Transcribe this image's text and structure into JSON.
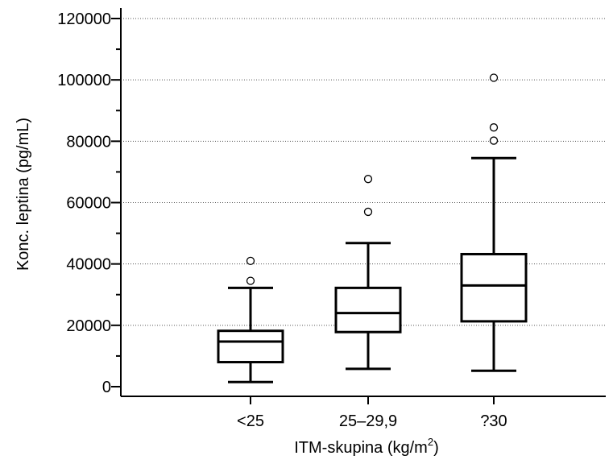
{
  "chart_data": {
    "type": "boxplot",
    "xlabel_main": "ITM-skupina (kg/m",
    "xlabel_sup": "2",
    "xlabel_end": ")",
    "ylabel": "Konc. leptina (pg/mL)",
    "ylim": [
      0,
      120000
    ],
    "yticks": [
      0,
      20000,
      40000,
      60000,
      80000,
      100000,
      120000
    ],
    "ytick_labels": [
      "0",
      "20000",
      "40000",
      "60000",
      "80000",
      "100000",
      "120000"
    ],
    "grid": "horizontal-dotted",
    "categories": [
      "<25",
      "25–29,9",
      "?30"
    ],
    "boxes": [
      {
        "category": "<25",
        "whisker_low": 1500,
        "q1": 8000,
        "median": 14700,
        "q3": 18200,
        "whisker_high": 32200,
        "outliers": [
          34500,
          41000
        ]
      },
      {
        "category": "25–29,9",
        "whisker_low": 5800,
        "q1": 17800,
        "median": 24000,
        "q3": 32200,
        "whisker_high": 46800,
        "outliers": [
          57000,
          67700
        ]
      },
      {
        "category": "?30",
        "whisker_low": 5200,
        "q1": 21300,
        "median": 33000,
        "q3": 43200,
        "whisker_high": 74500,
        "outliers": [
          80200,
          84500,
          100700
        ]
      }
    ]
  }
}
